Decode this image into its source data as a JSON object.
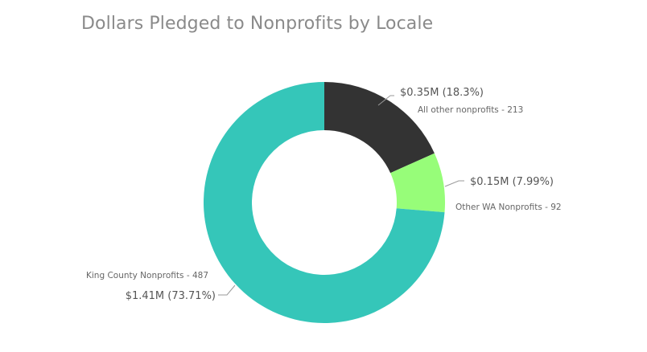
{
  "chart_data": {
    "type": "pie",
    "variant": "donut",
    "title": "Dollars Pledged to Nonprofits by Locale",
    "slices": [
      {
        "category": "All other nonprofits - 213",
        "value_label": "$0.35M (18.3%)",
        "value": 0.35,
        "percent": 18.3,
        "color": "#333333"
      },
      {
        "category": "Other WA Nonprofits - 92",
        "value_label": "$0.15M (7.99%)",
        "value": 0.15,
        "percent": 7.99,
        "color": "#97fd79"
      },
      {
        "category": "King County Nonprofits - 487",
        "value_label": "$1.41M (73.71%)",
        "value": 1.41,
        "percent": 73.71,
        "color": "#35c6b9"
      }
    ],
    "legend": "none"
  }
}
